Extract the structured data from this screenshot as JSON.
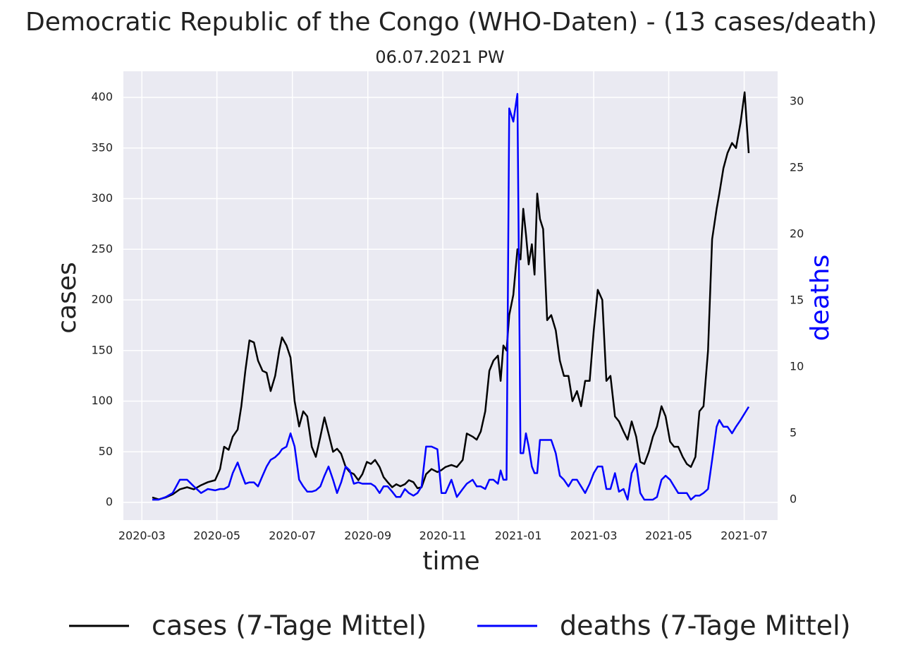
{
  "chart_data": {
    "type": "line",
    "title": "Democratic Republic of the Congo (WHO-Daten) - (13 cases/death)",
    "subtitle": "06.07.2021 PW",
    "xlabel": "time",
    "ylabel": "cases",
    "y2label": "deaths",
    "legend": "bottom",
    "grid": true,
    "xlim": [
      2020.126,
      2021.574
    ],
    "xticks": [
      {
        "value": 2020.167,
        "label": "2020-03"
      },
      {
        "value": 2020.333,
        "label": "2020-05"
      },
      {
        "value": 2020.5,
        "label": "2020-07"
      },
      {
        "value": 2020.667,
        "label": "2020-09"
      },
      {
        "value": 2020.833,
        "label": "2020-11"
      },
      {
        "value": 2021.0,
        "label": "2021-01"
      },
      {
        "value": 2021.167,
        "label": "2021-03"
      },
      {
        "value": 2021.333,
        "label": "2021-05"
      },
      {
        "value": 2021.5,
        "label": "2021-07"
      }
    ],
    "ylim": [
      -17.4,
      425.8
    ],
    "yticks": [
      0,
      50,
      100,
      150,
      200,
      250,
      300,
      350,
      400
    ],
    "y2lim": [
      -1.54,
      32.3
    ],
    "y2ticks": [
      0,
      5,
      10,
      15,
      20,
      25,
      30
    ],
    "x": [
      2020.19,
      2020.204,
      2020.22,
      2020.235,
      2020.251,
      2020.267,
      2020.282,
      2020.298,
      2020.313,
      2020.329,
      2020.34,
      2020.349,
      2020.359,
      2020.368,
      2020.379,
      2020.387,
      2020.396,
      2020.405,
      2020.415,
      2020.424,
      2020.434,
      2020.443,
      2020.452,
      2020.462,
      2020.471,
      2020.477,
      2020.487,
      2020.496,
      2020.505,
      2020.515,
      2020.524,
      2020.533,
      2020.543,
      2020.552,
      2020.562,
      2020.571,
      2020.58,
      2020.59,
      2020.599,
      2020.608,
      2020.618,
      2020.627,
      2020.636,
      2020.646,
      2020.655,
      2020.665,
      2020.674,
      2020.683,
      2020.693,
      2020.702,
      2020.711,
      2020.721,
      2020.73,
      2020.739,
      2020.749,
      2020.758,
      2020.768,
      2020.777,
      2020.786,
      2020.796,
      2020.808,
      2020.821,
      2020.83,
      2020.839,
      2020.852,
      2020.864,
      2020.877,
      2020.886,
      2020.899,
      2020.908,
      2020.917,
      2020.927,
      2020.936,
      2020.945,
      2020.955,
      2020.961,
      2020.967,
      2020.974,
      2020.98,
      2020.989,
      2020.998,
      2021.005,
      2021.011,
      2021.017,
      2021.023,
      2021.03,
      2021.036,
      2021.042,
      2021.048,
      2021.055,
      2021.064,
      2021.073,
      2021.083,
      2021.092,
      2021.101,
      2021.111,
      2021.12,
      2021.13,
      2021.139,
      2021.148,
      2021.158,
      2021.167,
      2021.176,
      2021.186,
      2021.195,
      2021.204,
      2021.214,
      2021.223,
      2021.233,
      2021.242,
      2021.251,
      2021.261,
      2021.27,
      2021.279,
      2021.289,
      2021.298,
      2021.307,
      2021.317,
      2021.326,
      2021.336,
      2021.345,
      2021.354,
      2021.364,
      2021.373,
      2021.382,
      2021.392,
      2021.401,
      2021.41,
      2021.42,
      2021.429,
      2021.439,
      2021.445,
      2021.454,
      2021.463,
      2021.473,
      2021.482,
      2021.492,
      2021.501,
      2021.51
    ],
    "series": [
      {
        "name": "cases (7-Tage Mittel)",
        "color": "#000000",
        "values": [
          5,
          3,
          5,
          8,
          13,
          15,
          13,
          17,
          20,
          22,
          33,
          55,
          52,
          65,
          72,
          95,
          130,
          160,
          158,
          140,
          130,
          128,
          110,
          125,
          150,
          163,
          155,
          143,
          100,
          75,
          90,
          85,
          55,
          45,
          65,
          84,
          68,
          50,
          53,
          48,
          35,
          30,
          28,
          22,
          28,
          40,
          38,
          42,
          35,
          25,
          20,
          15,
          18,
          16,
          18,
          22,
          20,
          14,
          15,
          28,
          33,
          30,
          32,
          35,
          37,
          35,
          42,
          68,
          65,
          62,
          70,
          90,
          130,
          140,
          145,
          120,
          155,
          150,
          185,
          205,
          250,
          240,
          290,
          265,
          235,
          255,
          225,
          305,
          280,
          270,
          180,
          185,
          170,
          140,
          125,
          125,
          100,
          110,
          95,
          120,
          120,
          170,
          210,
          200,
          120,
          125,
          85,
          80,
          70,
          62,
          80,
          65,
          40,
          38,
          50,
          65,
          75,
          95,
          85,
          60,
          55,
          55,
          45,
          38,
          35,
          45,
          90,
          95,
          150,
          260,
          290,
          305,
          330,
          345,
          355,
          350,
          375,
          405,
          345
        ]
      },
      {
        "name": "deaths (7-Tage Mittel)",
        "color": "#0000ff",
        "axis": "y2",
        "values": [
          0,
          0,
          0.2,
          0.5,
          1.5,
          1.5,
          1,
          0.5,
          0.8,
          0.7,
          0.8,
          0.8,
          1,
          2,
          2.8,
          2,
          1.2,
          1.3,
          1.3,
          1,
          1.8,
          2.5,
          3,
          3.2,
          3.5,
          3.8,
          4,
          5,
          4,
          1.5,
          1,
          0.6,
          0.6,
          0.7,
          1,
          1.8,
          2.5,
          1.5,
          0.5,
          1.3,
          2.5,
          2.2,
          1.2,
          1.3,
          1.2,
          1.2,
          1.2,
          1,
          0.5,
          1,
          1,
          0.6,
          0.2,
          0.2,
          0.8,
          0.5,
          0.3,
          0.5,
          1,
          4,
          4,
          3.8,
          0.5,
          0.5,
          1.5,
          0.2,
          0.8,
          1.2,
          1.5,
          1,
          1,
          0.8,
          1.5,
          1.5,
          1.2,
          2.2,
          1.5,
          1.5,
          29.5,
          28.5,
          30.6,
          3.5,
          3.5,
          5,
          4,
          2.5,
          2,
          2,
          4.5,
          4.5,
          4.5,
          4.5,
          3.5,
          1.8,
          1.5,
          1,
          1.5,
          1.5,
          1,
          0.5,
          1.2,
          2,
          2.5,
          2.5,
          0.8,
          0.8,
          2,
          0.6,
          0.8,
          0,
          2,
          2.7,
          0.5,
          0,
          0,
          0,
          0.2,
          1.5,
          1.8,
          1.5,
          1,
          0.5,
          0.5,
          0.5,
          0,
          0.3,
          0.3,
          0.5,
          0.8,
          3,
          5.5,
          6,
          5.5,
          5.5,
          5,
          5.5,
          6,
          6.5,
          7
        ]
      }
    ]
  }
}
